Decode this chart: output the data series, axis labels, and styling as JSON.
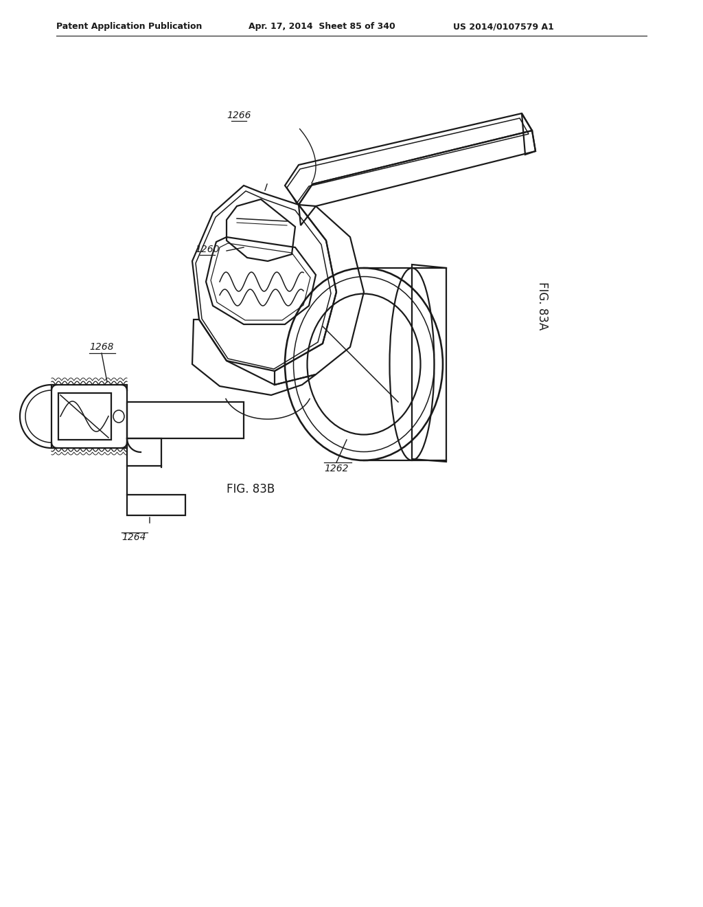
{
  "bg_color": "#ffffff",
  "header_left": "Patent Application Publication",
  "header_mid": "Apr. 17, 2014  Sheet 85 of 340",
  "header_right": "US 2014/0107579 A1",
  "fig_a_label": "FIG. 83A",
  "fig_b_label": "FIG. 83B",
  "line_color": "#1a1a1a",
  "text_color": "#1a1a1a"
}
